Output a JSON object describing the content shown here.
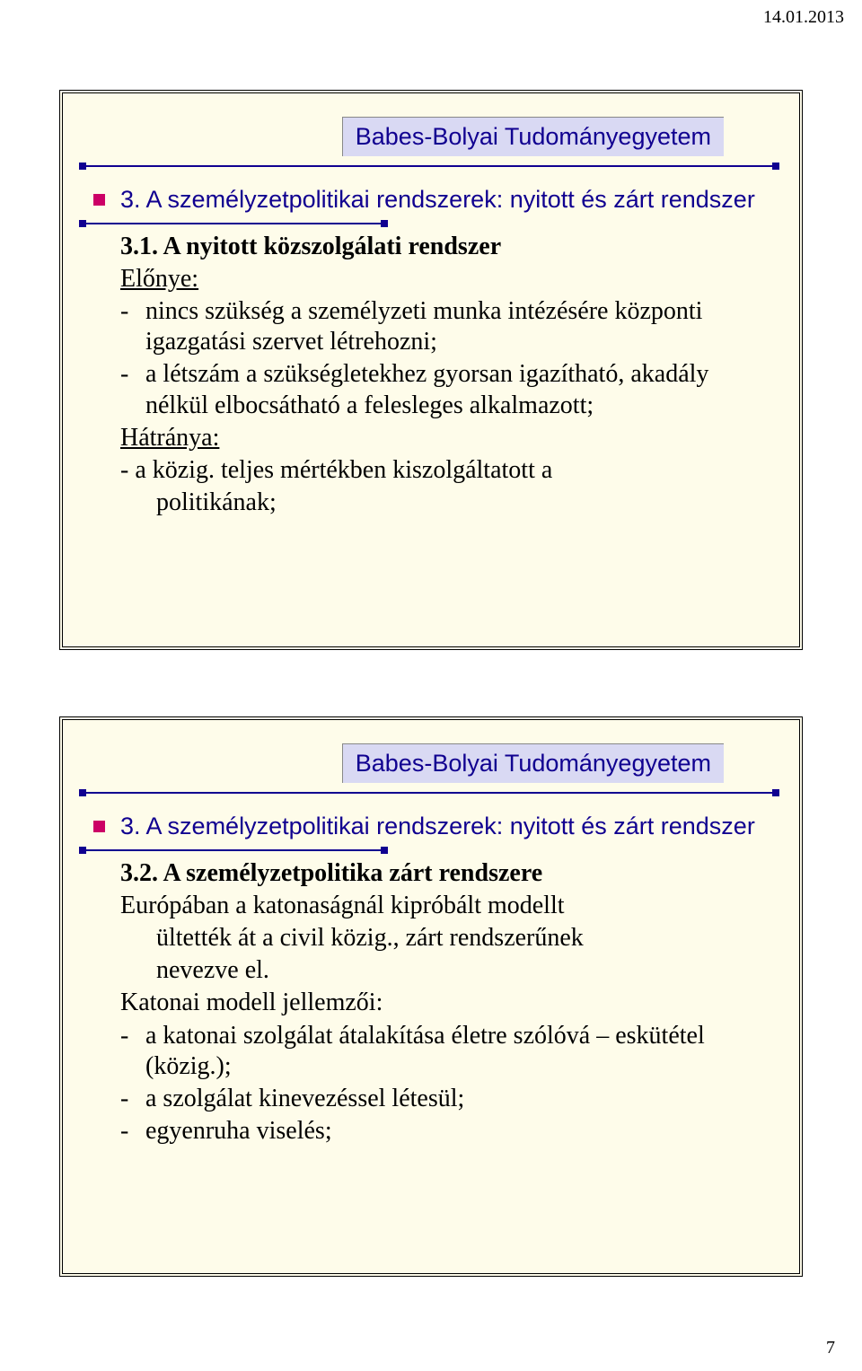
{
  "page": {
    "date": "14.01.2013",
    "number": "7",
    "background_color": "#ffffff"
  },
  "slide_style": {
    "background_color": "#fefcea",
    "border": "4px double #000",
    "title_bg": "#d9d9f3",
    "title_color": "#100090",
    "rule_color": "#100090",
    "bullet_color": "#cc0066",
    "title_fontsize": 27,
    "body_fontsize": 28,
    "title_font": "Verdana",
    "body_font": "Times New Roman"
  },
  "slide1": {
    "title": "Babes-Bolyai Tudományegyetem",
    "heading": "3. A személyzetpolitikai rendszerek: nyitott és zárt rendszer",
    "subheading": "3.1. A nyitott közszolgálati rendszer",
    "advantage_label": "Előnye:",
    "advantages": [
      "nincs szükség a személyzeti munka intézésére központi igazgatási szervet létrehozni;",
      "a létszám a szükségletekhez gyorsan igazítható, akadály nélkül elbocsátható a felesleges alkalmazott;"
    ],
    "disadvantage_label": "Hátránya:",
    "disadvantage_text": "- a közig. teljes mértékben kiszolgáltatott a politikának;"
  },
  "slide2": {
    "title": "Babes-Bolyai Tudományegyetem",
    "heading": "3. A személyzetpolitikai rendszerek: nyitott és zárt rendszer",
    "subheading": "3.2. A személyzetpolitika zárt rendszere",
    "intro": "Európában a katonaságnál kipróbált modellt ültették át a civil közig., zárt rendszerűnek nevezve el.",
    "features_label": "Katonai modell jellemzői:",
    "features": [
      "a katonai szolgálat átalakítása életre szólóvá – eskütétel (közig.);",
      "a szolgálat kinevezéssel létesül;",
      "egyenruha viselés;"
    ]
  }
}
